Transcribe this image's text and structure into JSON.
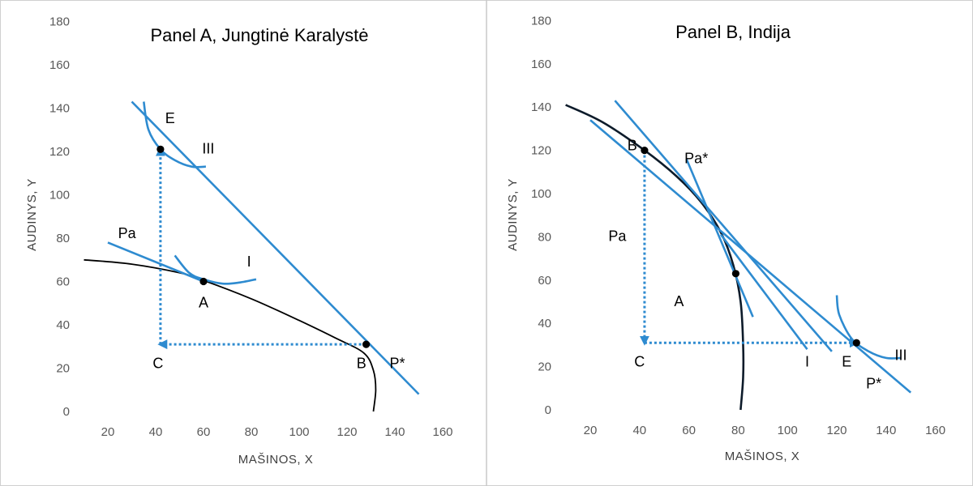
{
  "chart_data": [
    {
      "type": "line",
      "title": "Panel A, Jungtinė Karalystė",
      "xlabel": "MAŠINOS, X",
      "ylabel": "AUDINYS, Y",
      "xlim": [
        10,
        160
      ],
      "ylim": [
        0,
        180
      ],
      "x_ticks": [
        "20",
        "40",
        "60",
        "80",
        "100",
        "120",
        "140",
        "160"
      ],
      "y_ticks": [
        "0",
        "20",
        "40",
        "60",
        "80",
        "100",
        "120",
        "140",
        "160",
        "180"
      ],
      "ppf_color": "#000000",
      "line_color": "#2e8bd0",
      "series": [
        {
          "kind": "ppf",
          "points": [
            [
              10,
              70
            ],
            [
              30,
              68
            ],
            [
              50,
              64
            ],
            [
              60,
              60.5
            ],
            [
              80,
              52
            ],
            [
              100,
              42
            ],
            [
              115,
              34
            ],
            [
              127,
              27
            ],
            [
              131,
              19
            ],
            [
              132,
              10
            ],
            [
              131,
              0
            ]
          ]
        },
        {
          "name": "Pa",
          "kind": "price-line",
          "points": [
            [
              20,
              78
            ],
            [
              60,
              60
            ]
          ]
        },
        {
          "name": "P*",
          "kind": "price-line",
          "points": [
            [
              30,
              143
            ],
            [
              150,
              8
            ]
          ]
        },
        {
          "name": "I",
          "kind": "indifference",
          "points": [
            [
              48,
              72
            ],
            [
              54,
              64
            ],
            [
              60,
              61
            ],
            [
              68,
              59
            ],
            [
              75,
              59.5
            ],
            [
              82,
              61
            ]
          ]
        },
        {
          "name": "III",
          "kind": "indifference",
          "points": [
            [
              35,
              143
            ],
            [
              37,
              130
            ],
            [
              42,
              121
            ],
            [
              48,
              116
            ],
            [
              55,
              113
            ],
            [
              61,
              113
            ]
          ]
        },
        {
          "kind": "trade-arrow",
          "points": [
            [
              128,
              31
            ],
            [
              42,
              31
            ]
          ]
        },
        {
          "kind": "trade-arrow",
          "points": [
            [
              42,
              31
            ],
            [
              42,
              121
            ]
          ]
        }
      ],
      "points": [
        {
          "label": "A",
          "x": 60,
          "y": 60
        },
        {
          "label": "B",
          "x": 128,
          "y": 31
        },
        {
          "label": "E",
          "x": 42,
          "y": 121
        },
        {
          "label": "C",
          "x": 42,
          "y": 31,
          "marker": false
        }
      ],
      "annotations": [
        {
          "text": "Pa",
          "x": 28,
          "y": 80
        },
        {
          "text": "I",
          "x": 79,
          "y": 67
        },
        {
          "text": "III",
          "x": 62,
          "y": 119
        },
        {
          "text": "E",
          "x": 46,
          "y": 133
        },
        {
          "text": "A",
          "x": 60,
          "y": 48
        },
        {
          "text": "C",
          "x": 41,
          "y": 20
        },
        {
          "text": "B",
          "x": 126,
          "y": 20
        },
        {
          "text": "P*",
          "x": 141,
          "y": 20
        }
      ]
    },
    {
      "type": "line",
      "title": "Panel B, Indija",
      "xlabel": "MAŠINOS, X",
      "ylabel": "AUDINYS, Y",
      "xlim": [
        10,
        160
      ],
      "ylim": [
        0,
        180
      ],
      "x_ticks": [
        "20",
        "40",
        "60",
        "80",
        "100",
        "120",
        "140",
        "160"
      ],
      "y_ticks": [
        "0",
        "20",
        "40",
        "60",
        "80",
        "100",
        "120",
        "140",
        "160",
        "180"
      ],
      "ppf_color": "#0d1b2a",
      "line_color": "#2e8bd0",
      "series": [
        {
          "kind": "ppf",
          "points": [
            [
              10,
              141
            ],
            [
              25,
              133
            ],
            [
              42,
              120
            ],
            [
              55,
              108
            ],
            [
              65,
              96
            ],
            [
              73,
              82
            ],
            [
              78,
              67
            ],
            [
              81,
              50
            ],
            [
              82,
              30
            ],
            [
              82,
              15
            ],
            [
              81,
              0
            ]
          ]
        },
        {
          "name": "Pa",
          "kind": "price-line",
          "points": [
            [
              59,
              116
            ],
            [
              86,
              43
            ]
          ]
        },
        {
          "name": "I",
          "kind": "price-line",
          "points": [
            [
              30,
              143
            ],
            [
              118,
              27
            ]
          ]
        },
        {
          "name": "P*",
          "kind": "price-line",
          "points": [
            [
              73,
              81
            ],
            [
              108,
              28
            ]
          ]
        },
        {
          "name": "III",
          "kind": "price-line",
          "points": [
            [
              20,
              134
            ],
            [
              150,
              8
            ]
          ]
        },
        {
          "name": "Pa*",
          "kind": "indifference",
          "points": [
            [
              120,
              53
            ],
            [
              121,
              44
            ],
            [
              126,
              33
            ],
            [
              133,
              27
            ],
            [
              140,
              24
            ],
            [
              146,
              24
            ]
          ]
        },
        {
          "kind": "trade-arrow",
          "points": [
            [
              42,
              120
            ],
            [
              42,
              31
            ]
          ]
        },
        {
          "kind": "trade-arrow",
          "points": [
            [
              42,
              31
            ],
            [
              128,
              31
            ]
          ]
        }
      ],
      "points": [
        {
          "label": "B",
          "x": 42,
          "y": 120
        },
        {
          "label": "A",
          "x": 79,
          "y": 63
        },
        {
          "label": "E",
          "x": 128,
          "y": 31
        },
        {
          "label": "C",
          "x": 42,
          "y": 31,
          "marker": false
        }
      ],
      "annotations": [
        {
          "text": "B",
          "x": 37,
          "y": 120
        },
        {
          "text": "Pa*",
          "x": 63,
          "y": 114
        },
        {
          "text": "Pa",
          "x": 31,
          "y": 78
        },
        {
          "text": "A",
          "x": 56,
          "y": 48
        },
        {
          "text": "C",
          "x": 40,
          "y": 20
        },
        {
          "text": "I",
          "x": 108,
          "y": 20
        },
        {
          "text": "E",
          "x": 124,
          "y": 20
        },
        {
          "text": "III",
          "x": 146,
          "y": 23
        },
        {
          "text": "P*",
          "x": 135,
          "y": 10
        }
      ]
    }
  ]
}
